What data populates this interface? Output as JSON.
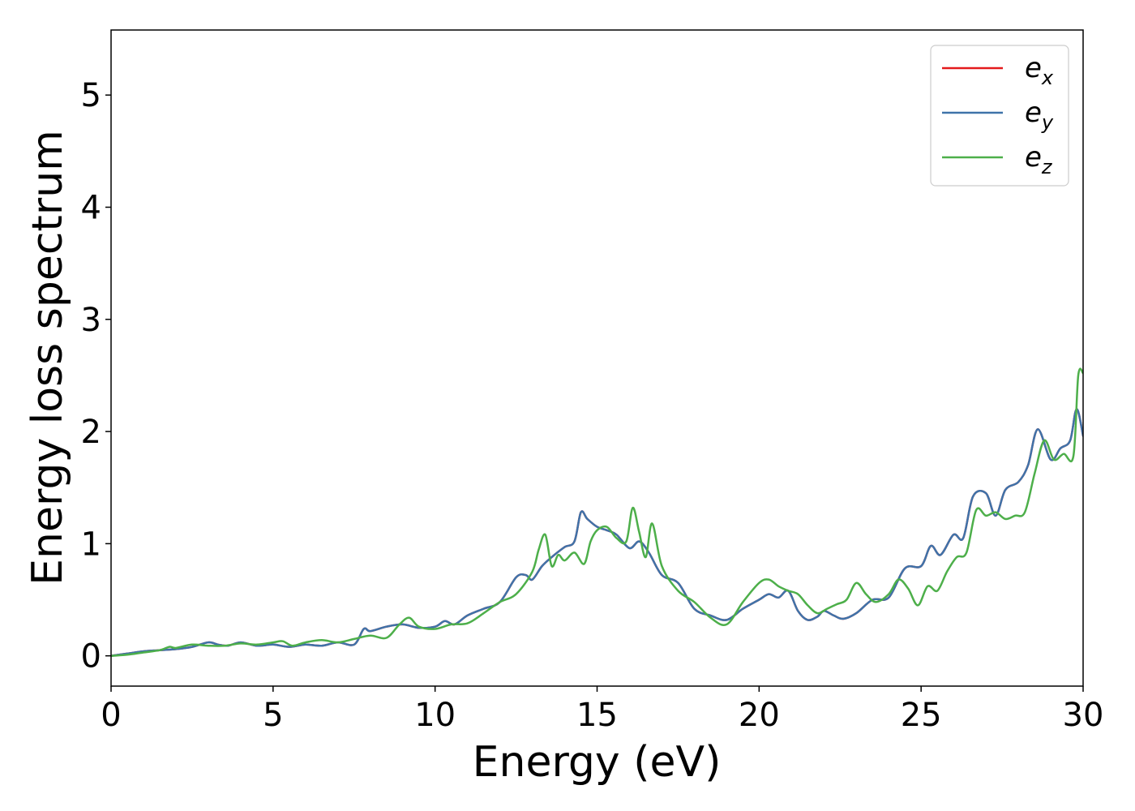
{
  "chart_data": {
    "type": "line",
    "title": "",
    "xlabel": "Energy (eV)",
    "ylabel": "Energy loss spectrum",
    "xlim": [
      0,
      30
    ],
    "ylim": [
      -0.27,
      5.58
    ],
    "xticks": [
      0,
      5,
      10,
      15,
      20,
      25,
      30
    ],
    "yticks": [
      0,
      1,
      2,
      3,
      4,
      5
    ],
    "xtick_labels": [
      "0",
      "5",
      "10",
      "15",
      "20",
      "25",
      "30"
    ],
    "ytick_labels": [
      "0",
      "1",
      "2",
      "3",
      "4",
      "5"
    ],
    "grid": false,
    "legend_position": "top-right",
    "series": [
      {
        "name": "e_x",
        "label_base": "e",
        "label_sub": "x",
        "color": "#e41a1c",
        "x": [
          0,
          0.5,
          1,
          1.5,
          2,
          2.5,
          3,
          3.3,
          3.6,
          4,
          4.5,
          5,
          5.5,
          6,
          6.5,
          7,
          7.5,
          7.8,
          8,
          8.5,
          9,
          9.5,
          10,
          10.3,
          10.6,
          11,
          11.5,
          12,
          12.5,
          12.8,
          13,
          13.3,
          13.6,
          14,
          14.3,
          14.5,
          14.7,
          15,
          15.3,
          15.6,
          16,
          16.3,
          16.6,
          17,
          17.5,
          18,
          18.5,
          19,
          19.5,
          20,
          20.3,
          20.6,
          20.9,
          21.2,
          21.5,
          21.8,
          22,
          22.3,
          22.6,
          23,
          23.5,
          24,
          24.5,
          25,
          25.3,
          25.6,
          26,
          26.3,
          26.6,
          27,
          27.3,
          27.6,
          28,
          28.3,
          28.6,
          29,
          29.3,
          29.6,
          29.8,
          30
        ],
        "y": [
          0,
          0.02,
          0.04,
          0.05,
          0.06,
          0.08,
          0.12,
          0.1,
          0.09,
          0.12,
          0.09,
          0.1,
          0.08,
          0.1,
          0.09,
          0.12,
          0.1,
          0.24,
          0.22,
          0.26,
          0.28,
          0.25,
          0.26,
          0.31,
          0.28,
          0.36,
          0.42,
          0.48,
          0.7,
          0.72,
          0.68,
          0.8,
          0.88,
          0.97,
          1.02,
          1.28,
          1.22,
          1.15,
          1.12,
          1.08,
          0.96,
          1.02,
          0.92,
          0.72,
          0.65,
          0.42,
          0.36,
          0.32,
          0.42,
          0.5,
          0.55,
          0.52,
          0.58,
          0.4,
          0.32,
          0.35,
          0.4,
          0.36,
          0.33,
          0.38,
          0.5,
          0.52,
          0.78,
          0.8,
          0.98,
          0.9,
          1.08,
          1.05,
          1.42,
          1.45,
          1.25,
          1.48,
          1.55,
          1.7,
          2.02,
          1.75,
          1.85,
          1.92,
          2.2,
          1.96
        ]
      },
      {
        "name": "e_y",
        "label_base": "e",
        "label_sub": "y",
        "color": "#3f73a9",
        "x": [
          0,
          0.5,
          1,
          1.5,
          2,
          2.5,
          3,
          3.3,
          3.6,
          4,
          4.5,
          5,
          5.5,
          6,
          6.5,
          7,
          7.5,
          7.8,
          8,
          8.5,
          9,
          9.5,
          10,
          10.3,
          10.6,
          11,
          11.5,
          12,
          12.5,
          12.8,
          13,
          13.3,
          13.6,
          14,
          14.3,
          14.5,
          14.7,
          15,
          15.3,
          15.6,
          16,
          16.3,
          16.6,
          17,
          17.5,
          18,
          18.5,
          19,
          19.5,
          20,
          20.3,
          20.6,
          20.9,
          21.2,
          21.5,
          21.8,
          22,
          22.3,
          22.6,
          23,
          23.5,
          24,
          24.5,
          25,
          25.3,
          25.6,
          26,
          26.3,
          26.6,
          27,
          27.3,
          27.6,
          28,
          28.3,
          28.6,
          29,
          29.3,
          29.6,
          29.8,
          30
        ],
        "y": [
          0,
          0.02,
          0.04,
          0.05,
          0.06,
          0.08,
          0.12,
          0.1,
          0.09,
          0.12,
          0.09,
          0.1,
          0.08,
          0.1,
          0.09,
          0.12,
          0.1,
          0.24,
          0.22,
          0.26,
          0.28,
          0.25,
          0.26,
          0.31,
          0.28,
          0.36,
          0.42,
          0.48,
          0.7,
          0.72,
          0.68,
          0.8,
          0.88,
          0.97,
          1.02,
          1.28,
          1.22,
          1.15,
          1.12,
          1.08,
          0.96,
          1.02,
          0.92,
          0.72,
          0.65,
          0.42,
          0.36,
          0.32,
          0.42,
          0.5,
          0.55,
          0.52,
          0.58,
          0.4,
          0.32,
          0.35,
          0.4,
          0.36,
          0.33,
          0.38,
          0.5,
          0.52,
          0.78,
          0.8,
          0.98,
          0.9,
          1.08,
          1.05,
          1.42,
          1.45,
          1.25,
          1.48,
          1.55,
          1.7,
          2.02,
          1.75,
          1.85,
          1.92,
          2.2,
          1.96
        ]
      },
      {
        "name": "e_z",
        "label_base": "e",
        "label_sub": "z",
        "color": "#4daf4a",
        "x": [
          0,
          0.5,
          1,
          1.5,
          1.8,
          2,
          2.5,
          3,
          3.5,
          4,
          4.5,
          5,
          5.3,
          5.6,
          6,
          6.5,
          7,
          7.5,
          8,
          8.5,
          8.9,
          9.2,
          9.5,
          10,
          10.5,
          11,
          11.5,
          12,
          12.5,
          13,
          13.2,
          13.4,
          13.6,
          13.8,
          14,
          14.3,
          14.6,
          14.8,
          15,
          15.3,
          15.6,
          15.9,
          16.1,
          16.3,
          16.5,
          16.7,
          17,
          17.5,
          18,
          18.5,
          19,
          19.5,
          20,
          20.3,
          20.6,
          20.9,
          21.2,
          21.5,
          21.8,
          22.1,
          22.4,
          22.7,
          23,
          23.3,
          23.6,
          24,
          24.3,
          24.6,
          24.9,
          25.2,
          25.5,
          25.8,
          26.1,
          26.4,
          26.7,
          27,
          27.3,
          27.6,
          27.9,
          28.2,
          28.5,
          28.8,
          29.1,
          29.4,
          29.7,
          29.85,
          30
        ],
        "y": [
          0,
          0.01,
          0.03,
          0.05,
          0.08,
          0.07,
          0.1,
          0.09,
          0.09,
          0.11,
          0.1,
          0.12,
          0.13,
          0.09,
          0.12,
          0.14,
          0.12,
          0.15,
          0.18,
          0.16,
          0.28,
          0.34,
          0.26,
          0.24,
          0.28,
          0.29,
          0.38,
          0.48,
          0.55,
          0.75,
          0.95,
          1.08,
          0.8,
          0.9,
          0.85,
          0.92,
          0.82,
          1.02,
          1.12,
          1.15,
          1.05,
          1.02,
          1.32,
          1.1,
          0.88,
          1.18,
          0.8,
          0.58,
          0.48,
          0.34,
          0.28,
          0.48,
          0.65,
          0.68,
          0.62,
          0.58,
          0.55,
          0.45,
          0.38,
          0.42,
          0.46,
          0.5,
          0.65,
          0.55,
          0.48,
          0.55,
          0.68,
          0.6,
          0.45,
          0.62,
          0.58,
          0.75,
          0.88,
          0.92,
          1.3,
          1.25,
          1.28,
          1.22,
          1.25,
          1.28,
          1.62,
          1.92,
          1.75,
          1.8,
          1.78,
          2.5,
          2.52
        ]
      }
    ]
  }
}
